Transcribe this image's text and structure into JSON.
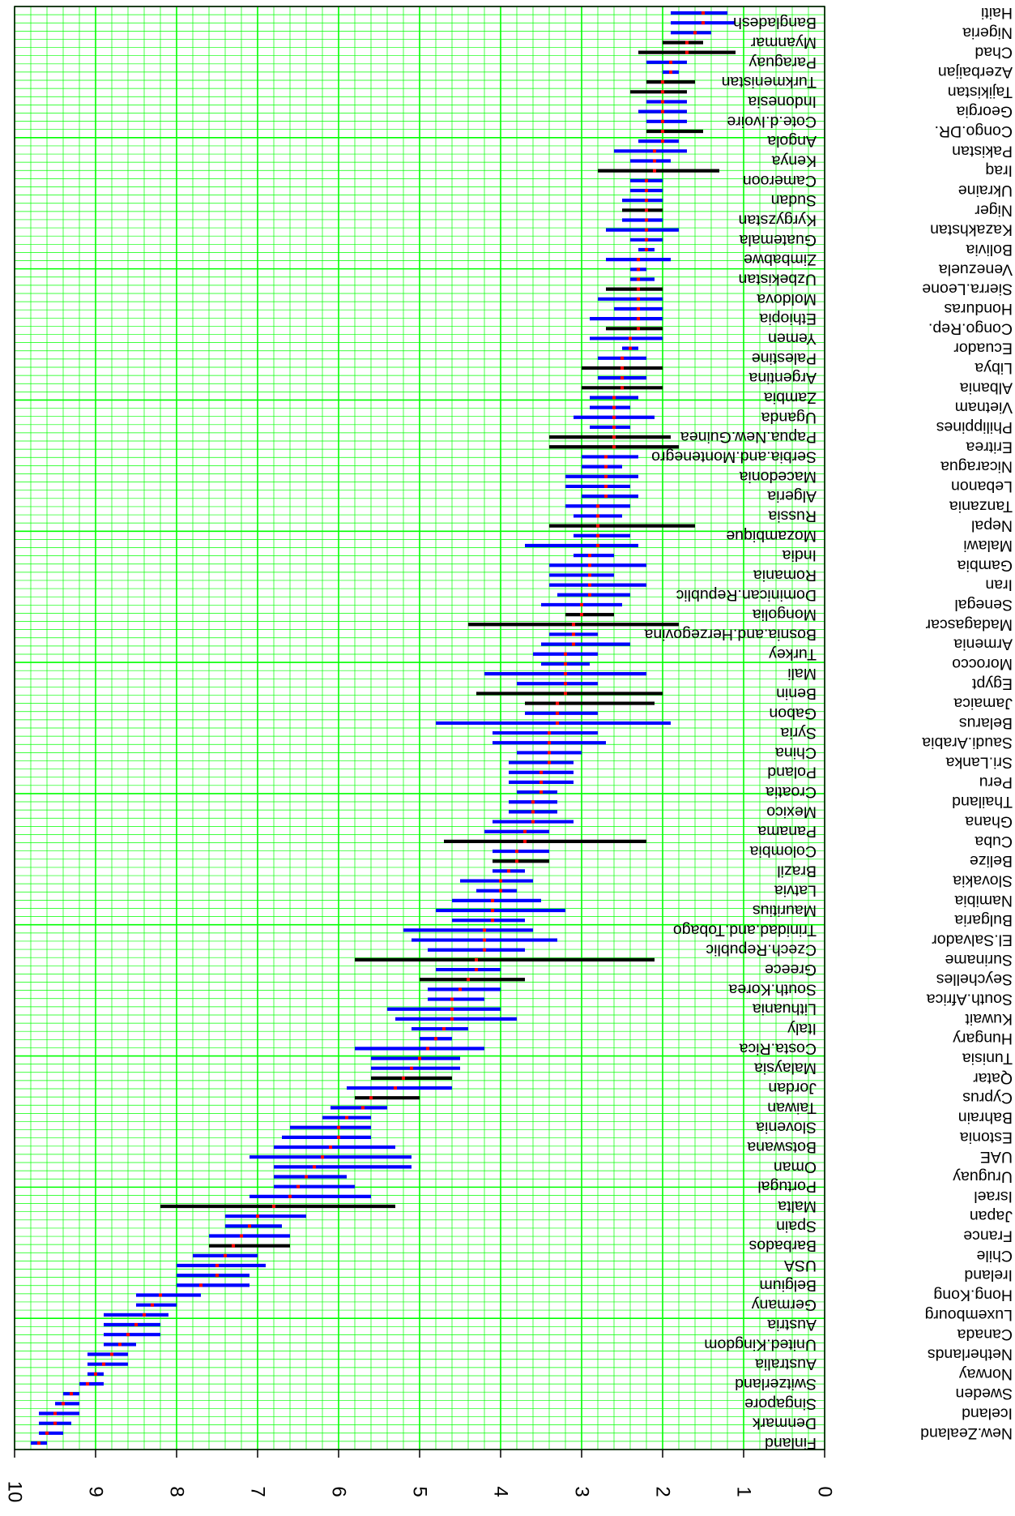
{
  "chart_data": {
    "type": "scatter",
    "title": "",
    "xlabel": "",
    "ylabel": "",
    "orientation": "rotated-180",
    "value_axis": {
      "range": [
        0,
        10
      ],
      "ticks": [
        0,
        1,
        2,
        3,
        4,
        5,
        6,
        7,
        8,
        9,
        10
      ]
    },
    "grid": true,
    "grid_color": "#00ff00",
    "point_color": "#ff0000",
    "interval_colors": {
      "normal": "#0000ff",
      "wide": "#000000"
    },
    "countries": [
      [
        "Finland",
        9.7,
        9.6,
        9.8,
        "n"
      ],
      [
        "New.Zealand",
        9.6,
        9.4,
        9.7,
        "n"
      ],
      [
        "Denmark",
        9.5,
        9.3,
        9.7,
        "n"
      ],
      [
        "Iceland",
        9.5,
        9.2,
        9.7,
        "n"
      ],
      [
        "Singapore",
        9.4,
        9.2,
        9.5,
        "n"
      ],
      [
        "Sweden",
        9.3,
        9.2,
        9.4,
        "n"
      ],
      [
        "Switzerland",
        9.1,
        8.9,
        9.2,
        "n"
      ],
      [
        "Norway",
        9.0,
        8.9,
        9.1,
        "n"
      ],
      [
        "Australia",
        8.9,
        8.6,
        9.1,
        "n"
      ],
      [
        "Netherlands",
        8.8,
        8.6,
        9.1,
        "n"
      ],
      [
        "United.Kingdom",
        8.7,
        8.5,
        8.9,
        "n"
      ],
      [
        "Canada",
        8.6,
        8.2,
        8.9,
        "n"
      ],
      [
        "Austria",
        8.5,
        8.2,
        8.9,
        "n"
      ],
      [
        "Luxembourg",
        8.4,
        8.1,
        8.9,
        "n"
      ],
      [
        "Germany",
        8.3,
        8.0,
        8.5,
        "n"
      ],
      [
        "Hong.Kong",
        8.2,
        7.7,
        8.5,
        "n"
      ],
      [
        "Belgium",
        7.7,
        7.1,
        8.0,
        "n"
      ],
      [
        "Ireland",
        7.5,
        7.1,
        8.0,
        "n"
      ],
      [
        "USA",
        7.5,
        6.9,
        8.0,
        "n"
      ],
      [
        "Chile",
        7.4,
        7.0,
        7.8,
        "n"
      ],
      [
        "Barbados",
        7.3,
        6.6,
        7.6,
        "w"
      ],
      [
        "France",
        7.2,
        6.6,
        7.6,
        "n"
      ],
      [
        "Spain",
        7.1,
        6.7,
        7.4,
        "n"
      ],
      [
        "Japan",
        7.0,
        6.4,
        7.4,
        "n"
      ],
      [
        "Malta",
        6.8,
        5.3,
        8.2,
        "w"
      ],
      [
        "Israel",
        6.6,
        5.6,
        7.1,
        "n"
      ],
      [
        "Portugal",
        6.5,
        5.8,
        6.8,
        "n"
      ],
      [
        "Uruguay",
        6.4,
        5.9,
        6.8,
        "n"
      ],
      [
        "Oman",
        6.3,
        5.1,
        6.8,
        "n"
      ],
      [
        "UAE",
        6.2,
        5.1,
        7.1,
        "n"
      ],
      [
        "Botswana",
        6.1,
        5.3,
        6.8,
        "n"
      ],
      [
        "Estonia",
        6.0,
        5.6,
        6.7,
        "n"
      ],
      [
        "Slovenia",
        6.0,
        5.6,
        6.6,
        "n"
      ],
      [
        "Bahrain",
        5.9,
        5.6,
        6.2,
        "n"
      ],
      [
        "Taiwan",
        5.7,
        5.4,
        6.1,
        "n"
      ],
      [
        "Cyprus",
        5.6,
        5.0,
        5.8,
        "w"
      ],
      [
        "Jordan",
        5.3,
        4.6,
        5.9,
        "n"
      ],
      [
        "Qatar",
        5.2,
        4.6,
        5.6,
        "w"
      ],
      [
        "Malaysia",
        5.1,
        4.5,
        5.6,
        "n"
      ],
      [
        "Tunisia",
        5.0,
        4.5,
        5.6,
        "n"
      ],
      [
        "Costa.Rica",
        4.9,
        4.2,
        5.8,
        "n"
      ],
      [
        "Hungary",
        4.8,
        4.6,
        5.0,
        "n"
      ],
      [
        "Italy",
        4.7,
        4.4,
        5.1,
        "n"
      ],
      [
        "Kuwait",
        4.6,
        3.8,
        5.3,
        "n"
      ],
      [
        "Lithuania",
        4.6,
        4.0,
        5.4,
        "n"
      ],
      [
        "South.Africa",
        4.6,
        4.2,
        4.9,
        "n"
      ],
      [
        "South.Korea",
        4.5,
        4.0,
        4.9,
        "n"
      ],
      [
        "Seychelles",
        4.4,
        3.7,
        5.0,
        "w"
      ],
      [
        "Greece",
        4.3,
        4.0,
        4.8,
        "n"
      ],
      [
        "Suriname",
        4.3,
        2.1,
        5.8,
        "w"
      ],
      [
        "Czech.Republic",
        4.2,
        3.7,
        4.9,
        "n"
      ],
      [
        "El.Salvador",
        4.2,
        3.3,
        5.1,
        "n"
      ],
      [
        "Trinidad.and.Tobago",
        4.2,
        3.6,
        5.2,
        "n"
      ],
      [
        "Bulgaria",
        4.1,
        3.7,
        4.6,
        "n"
      ],
      [
        "Mauritius",
        4.1,
        3.2,
        4.8,
        "n"
      ],
      [
        "Namibia",
        4.1,
        3.5,
        4.6,
        "n"
      ],
      [
        "Latvia",
        4.0,
        3.8,
        4.3,
        "n"
      ],
      [
        "Slovakia",
        4.0,
        3.6,
        4.5,
        "n"
      ],
      [
        "Brazil",
        3.9,
        3.7,
        4.1,
        "n"
      ],
      [
        "Belize",
        3.8,
        3.4,
        4.1,
        "w"
      ],
      [
        "Colombia",
        3.8,
        3.4,
        4.1,
        "n"
      ],
      [
        "Cuba",
        3.7,
        2.2,
        4.7,
        "w"
      ],
      [
        "Panama",
        3.7,
        3.4,
        4.2,
        "n"
      ],
      [
        "Ghana",
        3.6,
        3.1,
        4.1,
        "n"
      ],
      [
        "Mexico",
        3.6,
        3.3,
        3.9,
        "n"
      ],
      [
        "Thailand",
        3.6,
        3.3,
        3.9,
        "n"
      ],
      [
        "Croatia",
        3.5,
        3.3,
        3.8,
        "n"
      ],
      [
        "Peru",
        3.5,
        3.1,
        3.9,
        "n"
      ],
      [
        "Poland",
        3.5,
        3.1,
        3.9,
        "n"
      ],
      [
        "Sri.Lanka",
        3.4,
        3.1,
        3.9,
        "n"
      ],
      [
        "China",
        3.4,
        3.0,
        3.8,
        "n"
      ],
      [
        "Saudi.Arabia",
        3.4,
        2.7,
        4.1,
        "n"
      ],
      [
        "Syria",
        3.4,
        2.8,
        4.1,
        "n"
      ],
      [
        "Belarus",
        3.3,
        1.9,
        4.8,
        "n"
      ],
      [
        "Gabon",
        3.3,
        2.8,
        3.7,
        "n"
      ],
      [
        "Jamaica",
        3.3,
        2.1,
        3.7,
        "w"
      ],
      [
        "Benin",
        3.2,
        2.0,
        4.3,
        "w"
      ],
      [
        "Egypt",
        3.2,
        2.8,
        3.8,
        "n"
      ],
      [
        "Mali",
        3.2,
        2.2,
        4.2,
        "n"
      ],
      [
        "Morocco",
        3.2,
        2.9,
        3.5,
        "n"
      ],
      [
        "Turkey",
        3.2,
        2.8,
        3.6,
        "n"
      ],
      [
        "Armenia",
        3.1,
        2.4,
        3.5,
        "n"
      ],
      [
        "Bosnia.and.Herzegovina",
        3.1,
        2.8,
        3.4,
        "n"
      ],
      [
        "Madagascar",
        3.1,
        1.8,
        4.4,
        "w"
      ],
      [
        "Mongolia",
        3.0,
        2.6,
        3.2,
        "w"
      ],
      [
        "Senegal",
        3.0,
        2.5,
        3.5,
        "n"
      ],
      [
        "Dominican.Republic",
        2.9,
        2.4,
        3.3,
        "n"
      ],
      [
        "Iran",
        2.9,
        2.2,
        3.4,
        "n"
      ],
      [
        "Romania",
        2.9,
        2.6,
        3.4,
        "n"
      ],
      [
        "Gambia",
        2.9,
        2.2,
        3.4,
        "n"
      ],
      [
        "India",
        2.9,
        2.6,
        3.1,
        "n"
      ],
      [
        "Malawi",
        2.8,
        2.3,
        3.7,
        "n"
      ],
      [
        "Mozambique",
        2.8,
        2.4,
        3.1,
        "n"
      ],
      [
        "Nepal",
        2.8,
        1.6,
        3.4,
        "w"
      ],
      [
        "Russia",
        2.8,
        2.5,
        3.1,
        "n"
      ],
      [
        "Tanzania",
        2.8,
        2.4,
        3.2,
        "n"
      ],
      [
        "Algeria",
        2.7,
        2.3,
        3.0,
        "n"
      ],
      [
        "Lebanon",
        2.7,
        2.4,
        3.2,
        "n"
      ],
      [
        "Macedonia",
        2.7,
        2.3,
        3.2,
        "n"
      ],
      [
        "Nicaragua",
        2.7,
        2.5,
        3.0,
        "n"
      ],
      [
        "Serbia.and.Montenegro",
        2.7,
        2.3,
        3.0,
        "n"
      ],
      [
        "Eritrea",
        2.6,
        1.8,
        3.4,
        "w"
      ],
      [
        "Papua.New.Guinea",
        2.6,
        1.9,
        3.4,
        "w"
      ],
      [
        "Philippines",
        2.6,
        2.4,
        2.9,
        "n"
      ],
      [
        "Uganda",
        2.6,
        2.1,
        3.1,
        "n"
      ],
      [
        "Vietnam",
        2.6,
        2.4,
        2.9,
        "n"
      ],
      [
        "Zambia",
        2.6,
        2.3,
        2.9,
        "n"
      ],
      [
        "Albania",
        2.5,
        2.0,
        3.0,
        "w"
      ],
      [
        "Argentina",
        2.5,
        2.2,
        2.8,
        "n"
      ],
      [
        "Libya",
        2.5,
        2.0,
        3.0,
        "w"
      ],
      [
        "Palestine",
        2.5,
        2.2,
        2.8,
        "n"
      ],
      [
        "Ecuador",
        2.4,
        2.3,
        2.5,
        "n"
      ],
      [
        "Yemen",
        2.4,
        2.0,
        2.9,
        "n"
      ],
      [
        "Congo.Rep.",
        2.3,
        2.0,
        2.7,
        "w"
      ],
      [
        "Ethiopia",
        2.3,
        2.0,
        2.9,
        "n"
      ],
      [
        "Honduras",
        2.3,
        2.0,
        2.6,
        "n"
      ],
      [
        "Moldova",
        2.3,
        2.0,
        2.8,
        "n"
      ],
      [
        "Sierra.Leone",
        2.3,
        2.0,
        2.7,
        "w"
      ],
      [
        "Uzbekistan",
        2.3,
        2.1,
        2.4,
        "n"
      ],
      [
        "Venezuela",
        2.3,
        2.2,
        2.4,
        "n"
      ],
      [
        "Zimbabwe",
        2.3,
        1.9,
        2.7,
        "n"
      ],
      [
        "Bolivia",
        2.2,
        2.1,
        2.3,
        "n"
      ],
      [
        "Guatemala",
        2.2,
        2.0,
        2.4,
        "n"
      ],
      [
        "Kazakhstan",
        2.2,
        1.8,
        2.7,
        "n"
      ],
      [
        "Kyrgyzstan",
        2.2,
        2.0,
        2.5,
        "n"
      ],
      [
        "Niger",
        2.2,
        2.0,
        2.5,
        "w"
      ],
      [
        "Sudan",
        2.2,
        2.0,
        2.5,
        "n"
      ],
      [
        "Ukraine",
        2.2,
        2.0,
        2.4,
        "n"
      ],
      [
        "Cameroon",
        2.2,
        2.0,
        2.4,
        "n"
      ],
      [
        "Iraq",
        2.1,
        1.3,
        2.8,
        "w"
      ],
      [
        "Kenya",
        2.1,
        1.9,
        2.4,
        "n"
      ],
      [
        "Pakistan",
        2.1,
        1.7,
        2.6,
        "n"
      ],
      [
        "Angola",
        2.0,
        1.8,
        2.3,
        "n"
      ],
      [
        "Congo.DR.",
        2.0,
        1.5,
        2.2,
        "w"
      ],
      [
        "Cote.d.Ivoire",
        2.0,
        1.7,
        2.2,
        "n"
      ],
      [
        "Georgia",
        2.0,
        1.7,
        2.3,
        "n"
      ],
      [
        "Indonesia",
        2.0,
        1.7,
        2.2,
        "n"
      ],
      [
        "Tajikistan",
        2.0,
        1.7,
        2.4,
        "w"
      ],
      [
        "Turkmenistan",
        2.0,
        1.6,
        2.2,
        "w"
      ],
      [
        "Azerbaijan",
        1.9,
        1.8,
        2.0,
        "n"
      ],
      [
        "Paraguay",
        1.9,
        1.7,
        2.2,
        "n"
      ],
      [
        "Chad",
        1.7,
        1.1,
        2.3,
        "w"
      ],
      [
        "Myanmar",
        1.7,
        1.5,
        2.0,
        "w"
      ],
      [
        "Nigeria",
        1.6,
        1.4,
        1.9,
        "n"
      ],
      [
        "Bangladesh",
        1.5,
        1.1,
        1.9,
        "n"
      ],
      [
        "Haiti",
        1.5,
        1.2,
        1.9,
        "n"
      ]
    ]
  }
}
